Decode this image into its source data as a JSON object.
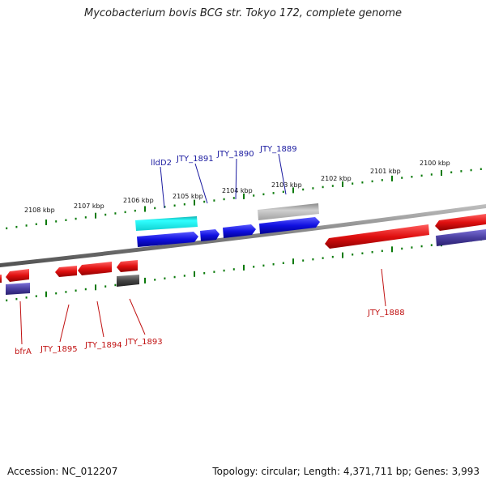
{
  "title": "Mycobacterium bovis BCG str. Tokyo 172, complete genome",
  "footer": {
    "accession": "Accession: NC_012207",
    "topology": "Topology: circular; Length: 4,371,711 bp; Genes: 3,993"
  },
  "colors": {
    "forward_gene": "#1010e0",
    "reverse_gene": "#e01010",
    "forward_rna": "#20e0e0",
    "forward_pseudo": "#b0b0b0",
    "reverse_pseudo": "#555555",
    "reverse_alt": "#4a3fa0",
    "ticks": "#0a7a0a",
    "backbone": "#808080",
    "forward_label": "#1a1aa0",
    "reverse_label": "#c01010"
  },
  "scale_labels": [
    "2108 kbp",
    "2107 kbp",
    "2106 kbp",
    "2105 kbp",
    "2104 kbp",
    "2103 kbp",
    "2102 kbp",
    "2101 kbp",
    "2100 kbp"
  ],
  "forward_labels": [
    "lldD2",
    "JTY_1891",
    "JTY_1890",
    "JTY_1889"
  ],
  "reverse_labels": [
    "bfrA",
    "JTY_1895",
    "JTY_1894",
    "JTY_1893",
    "JTY_1888"
  ]
}
